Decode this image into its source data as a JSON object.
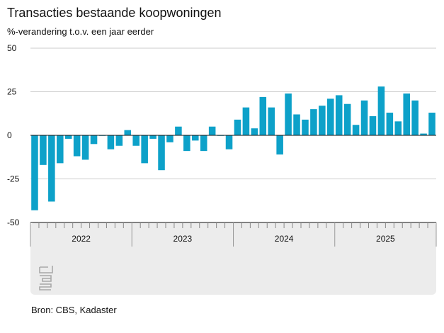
{
  "header": {
    "title": "Transacties bestaande koopwoningen",
    "subtitle": "%-verandering t.o.v. een jaar eerder"
  },
  "footer": {
    "source": "Bron: CBS, Kadaster"
  },
  "logo": {
    "icon": "cbs-logo-icon",
    "text": "cbs"
  },
  "colors": {
    "bar": "#0da1c9",
    "grid": "#cccccc",
    "axis": "#111111",
    "panel": "#ececec"
  },
  "chart_data": {
    "type": "bar",
    "title": "Transacties bestaande koopwoningen",
    "ylabel": "%-verandering t.o.v. een jaar eerder",
    "ylim": [
      -50,
      50
    ],
    "yticks": [
      50,
      25,
      0,
      -25,
      -50
    ],
    "ytick_labels": [
      "50",
      "25",
      "0",
      "-25",
      "-50"
    ],
    "year_labels": [
      "2022",
      "2023",
      "2024",
      "2025"
    ],
    "categories": [
      "2022-01",
      "2022-02",
      "2022-03",
      "2022-04",
      "2022-05",
      "2022-06",
      "2022-07",
      "2022-08",
      "2022-09",
      "2022-10",
      "2022-11",
      "2022-12",
      "2023-01",
      "2023-02",
      "2023-03",
      "2023-04",
      "2023-05",
      "2023-06",
      "2023-07",
      "2023-08",
      "2023-09",
      "2023-10",
      "2023-11",
      "2023-12",
      "2024-01",
      "2024-02",
      "2024-03",
      "2024-04",
      "2024-05",
      "2024-06",
      "2024-07",
      "2024-08",
      "2024-09",
      "2024-10",
      "2024-11",
      "2024-12",
      "2025-01",
      "2025-02",
      "2025-03",
      "2025-04",
      "2025-05",
      "2025-06",
      "2025-07",
      "2025-08",
      "2025-09",
      "2025-10",
      "2025-11",
      "2025-12"
    ],
    "values": [
      -43,
      -17,
      -38,
      -16,
      -2,
      -12,
      -14,
      -5,
      0,
      -8,
      -6,
      3,
      -6,
      -16,
      -2,
      -20,
      -4,
      5,
      -9,
      -3,
      -9,
      5,
      0,
      -8,
      9,
      16,
      4,
      22,
      16,
      -11,
      24,
      12,
      9,
      15,
      17,
      21,
      23,
      18,
      6,
      20,
      11,
      28,
      13,
      8,
      24,
      20,
      1,
      13
    ],
    "grid": true,
    "legend": "none"
  }
}
